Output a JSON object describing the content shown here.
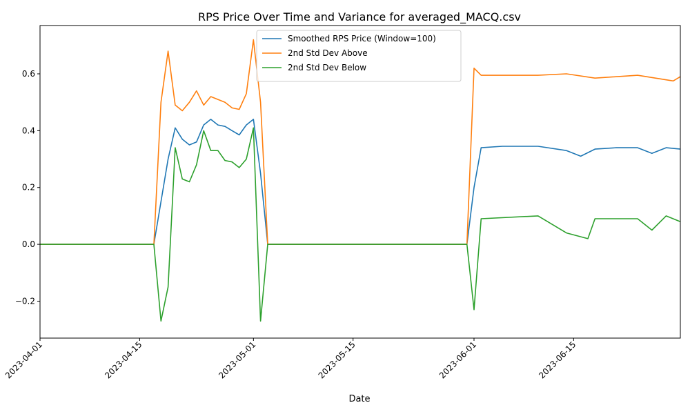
{
  "chart_data": {
    "type": "line",
    "title": "RPS Price Over Time and Variance for averaged_MACQ.csv",
    "xlabel": "Date",
    "ylabel": "",
    "x_type": "date",
    "xlim": [
      "2023-04-01",
      "2023-06-30"
    ],
    "ylim": [
      -0.33,
      0.77
    ],
    "x_ticks": [
      "2023-04-01",
      "2023-04-15",
      "2023-05-01",
      "2023-05-15",
      "2023-06-01",
      "2023-06-15"
    ],
    "y_ticks": [
      -0.2,
      0.0,
      0.2,
      0.4,
      0.6
    ],
    "y_tick_labels": [
      "−0.2",
      "0.0",
      "0.2",
      "0.4",
      "0.6"
    ],
    "grid": false,
    "legend_position": "upper center",
    "series": [
      {
        "name": "Smoothed RPS Price (Window=100)",
        "color": "#1f77b4",
        "points": [
          [
            "2023-04-01",
            0.0
          ],
          [
            "2023-04-17",
            0.0
          ],
          [
            "2023-04-18",
            0.15
          ],
          [
            "2023-04-19",
            0.3
          ],
          [
            "2023-04-20",
            0.41
          ],
          [
            "2023-04-21",
            0.37
          ],
          [
            "2023-04-22",
            0.35
          ],
          [
            "2023-04-23",
            0.36
          ],
          [
            "2023-04-24",
            0.42
          ],
          [
            "2023-04-25",
            0.44
          ],
          [
            "2023-04-26",
            0.42
          ],
          [
            "2023-04-27",
            0.415
          ],
          [
            "2023-04-28",
            0.4
          ],
          [
            "2023-04-29",
            0.385
          ],
          [
            "2023-04-30",
            0.42
          ],
          [
            "2023-05-01",
            0.44
          ],
          [
            "2023-05-02",
            0.25
          ],
          [
            "2023-05-03",
            0.0
          ],
          [
            "2023-05-31",
            0.0
          ],
          [
            "2023-06-01",
            0.2
          ],
          [
            "2023-06-02",
            0.34
          ],
          [
            "2023-06-05",
            0.345
          ],
          [
            "2023-06-10",
            0.345
          ],
          [
            "2023-06-14",
            0.33
          ],
          [
            "2023-06-16",
            0.31
          ],
          [
            "2023-06-18",
            0.335
          ],
          [
            "2023-06-21",
            0.34
          ],
          [
            "2023-06-24",
            0.34
          ],
          [
            "2023-06-26",
            0.32
          ],
          [
            "2023-06-28",
            0.34
          ],
          [
            "2023-06-30",
            0.335
          ]
        ]
      },
      {
        "name": "2nd Std Dev Above",
        "color": "#ff7f0e",
        "points": [
          [
            "2023-04-01",
            0.0
          ],
          [
            "2023-04-17",
            0.0
          ],
          [
            "2023-04-18",
            0.5
          ],
          [
            "2023-04-19",
            0.68
          ],
          [
            "2023-04-20",
            0.49
          ],
          [
            "2023-04-21",
            0.47
          ],
          [
            "2023-04-22",
            0.5
          ],
          [
            "2023-04-23",
            0.54
          ],
          [
            "2023-04-24",
            0.49
          ],
          [
            "2023-04-25",
            0.52
          ],
          [
            "2023-04-26",
            0.51
          ],
          [
            "2023-04-27",
            0.5
          ],
          [
            "2023-04-28",
            0.48
          ],
          [
            "2023-04-29",
            0.475
          ],
          [
            "2023-04-30",
            0.53
          ],
          [
            "2023-05-01",
            0.72
          ],
          [
            "2023-05-02",
            0.5
          ],
          [
            "2023-05-03",
            0.0
          ],
          [
            "2023-05-31",
            0.0
          ],
          [
            "2023-06-01",
            0.62
          ],
          [
            "2023-06-02",
            0.595
          ],
          [
            "2023-06-10",
            0.595
          ],
          [
            "2023-06-14",
            0.6
          ],
          [
            "2023-06-18",
            0.585
          ],
          [
            "2023-06-24",
            0.595
          ],
          [
            "2023-06-29",
            0.575
          ],
          [
            "2023-06-30",
            0.59
          ]
        ]
      },
      {
        "name": "2nd Std Dev Below",
        "color": "#2ca02c",
        "points": [
          [
            "2023-04-01",
            0.0
          ],
          [
            "2023-04-17",
            0.0
          ],
          [
            "2023-04-18",
            -0.27
          ],
          [
            "2023-04-19",
            -0.15
          ],
          [
            "2023-04-20",
            0.34
          ],
          [
            "2023-04-21",
            0.23
          ],
          [
            "2023-04-22",
            0.22
          ],
          [
            "2023-04-23",
            0.28
          ],
          [
            "2023-04-24",
            0.4
          ],
          [
            "2023-04-25",
            0.33
          ],
          [
            "2023-04-26",
            0.33
          ],
          [
            "2023-04-27",
            0.295
          ],
          [
            "2023-04-28",
            0.29
          ],
          [
            "2023-04-29",
            0.27
          ],
          [
            "2023-04-30",
            0.3
          ],
          [
            "2023-05-01",
            0.41
          ],
          [
            "2023-05-02",
            -0.27
          ],
          [
            "2023-05-03",
            0.0
          ],
          [
            "2023-05-31",
            0.0
          ],
          [
            "2023-06-01",
            -0.23
          ],
          [
            "2023-06-02",
            0.09
          ],
          [
            "2023-06-10",
            0.1
          ],
          [
            "2023-06-14",
            0.04
          ],
          [
            "2023-06-17",
            0.02
          ],
          [
            "2023-06-18",
            0.09
          ],
          [
            "2023-06-24",
            0.09
          ],
          [
            "2023-06-26",
            0.05
          ],
          [
            "2023-06-28",
            0.1
          ],
          [
            "2023-06-30",
            0.08
          ]
        ]
      }
    ]
  }
}
